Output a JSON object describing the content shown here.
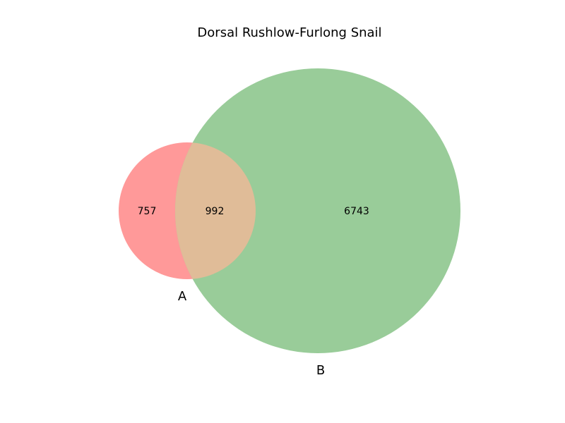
{
  "title": "Dorsal Rushlow-Furlong Snail",
  "chart_data": {
    "type": "venn",
    "title": "Dorsal Rushlow-Furlong Snail",
    "sets": [
      {
        "name": "A",
        "color": "#ff9999"
      },
      {
        "name": "B",
        "color": "#99cc99"
      }
    ],
    "regions": [
      {
        "sets": [
          "A"
        ],
        "value": 757
      },
      {
        "sets": [
          "A",
          "B"
        ],
        "value": 992
      },
      {
        "sets": [
          "B"
        ],
        "value": 6743
      }
    ],
    "overlap_color": "#e0bc98"
  }
}
